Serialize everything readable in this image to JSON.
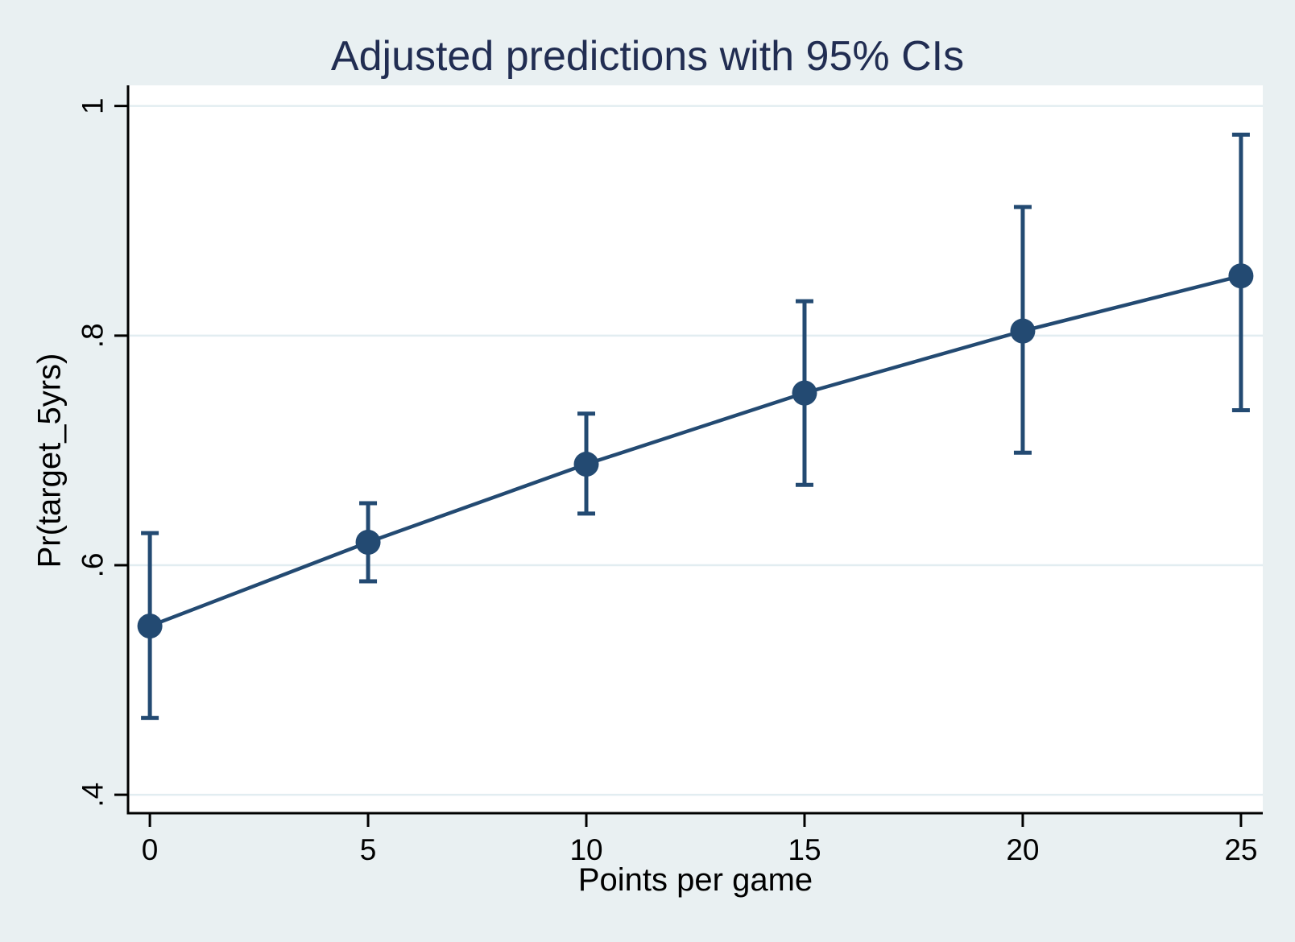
{
  "chart_data": {
    "type": "line",
    "title": "Adjusted predictions with 95% CIs",
    "xlabel": "Points per game",
    "ylabel": "Pr(target_5yrs)",
    "x": [
      0,
      5,
      10,
      15,
      20,
      25
    ],
    "series": [
      {
        "name": "Adjusted prediction",
        "values": [
          0.547,
          0.62,
          0.688,
          0.75,
          0.804,
          0.852
        ],
        "ci_lower": [
          0.467,
          0.586,
          0.645,
          0.67,
          0.698,
          0.735
        ],
        "ci_upper": [
          0.628,
          0.654,
          0.732,
          0.83,
          0.912,
          0.975
        ]
      }
    ],
    "x_ticks": [
      {
        "value": 0,
        "label": "0"
      },
      {
        "value": 5,
        "label": "5"
      },
      {
        "value": 10,
        "label": "10"
      },
      {
        "value": 15,
        "label": "15"
      },
      {
        "value": 20,
        "label": "20"
      },
      {
        "value": 25,
        "label": "25"
      }
    ],
    "y_ticks": [
      {
        "value": 0.4,
        "label": ".4"
      },
      {
        "value": 0.6,
        "label": ".6"
      },
      {
        "value": 0.8,
        "label": ".8"
      },
      {
        "value": 1.0,
        "label": "1"
      }
    ],
    "xlim": [
      -0.5,
      25.5
    ],
    "ylim": [
      0.384,
      1.018
    ],
    "grid": "horizontal-only",
    "legend_position": "none",
    "error_bars": "95% CI with caps",
    "colors": {
      "series": "#234a72",
      "title": "#212d52",
      "background": "#e9f0f2",
      "plot_background": "#ffffff",
      "gridline": "#e2edf1",
      "axis": "#000000",
      "tick_label": "#000000"
    }
  }
}
